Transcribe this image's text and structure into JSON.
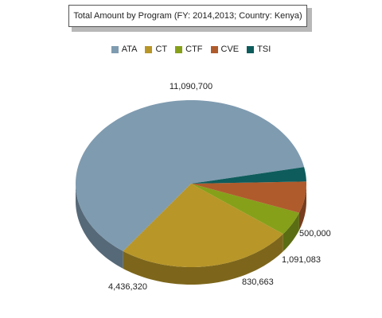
{
  "chart_data": {
    "type": "pie",
    "title": "Total Amount by Program (FY: 2014,2013; Country: Kenya)",
    "legend_position": "top",
    "categories": [
      "ATA",
      "CT",
      "CTF",
      "CVE",
      "TSI"
    ],
    "values": [
      11090700,
      4436320,
      830663,
      1091083,
      500000
    ],
    "value_labels": [
      "11,090,700",
      "4,436,320",
      "830,663",
      "1,091,083",
      "500,000"
    ],
    "colors": [
      "#7f9bb0",
      "#b89628",
      "#86a01a",
      "#b05b2c",
      "#0e5c5c"
    ]
  }
}
